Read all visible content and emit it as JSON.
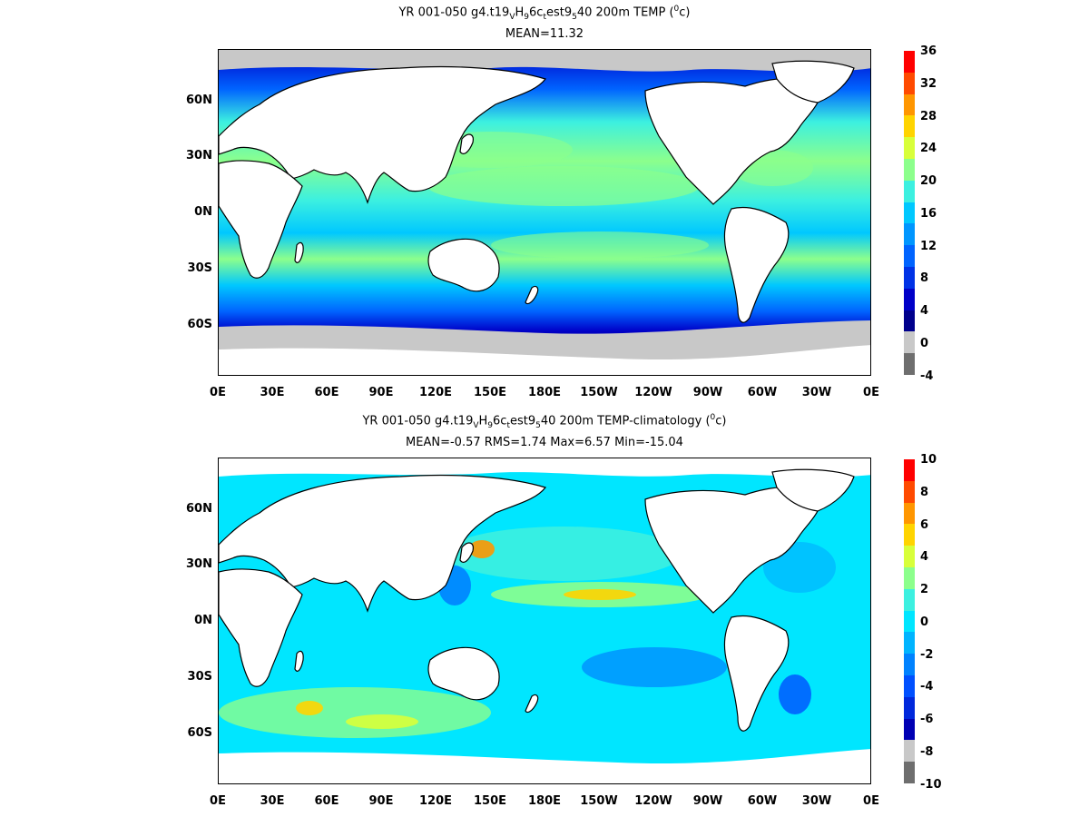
{
  "panels": [
    {
      "title_parts": {
        "pre": "YR 001-050 g4.t19",
        "s1": "V",
        "m1": "H",
        "s2": "9",
        "m2": "6c",
        "s3": "t",
        "m3": "est9",
        "s4": "5",
        "m4": "40 200m TEMP (",
        "sup": "0",
        "post": "c)"
      },
      "stats": "MEAN=11.32",
      "colorbar": {
        "labels": [
          "36",
          "32",
          "28",
          "24",
          "20",
          "16",
          "12",
          "8",
          "4",
          "0",
          "-4"
        ],
        "colors": [
          "#ff0000",
          "#ff4a00",
          "#ff9600",
          "#ffd400",
          "#d8ff3a",
          "#8cff8c",
          "#3cf0e0",
          "#00c8ff",
          "#0096ff",
          "#0064ff",
          "#0032e6",
          "#0000c8",
          "#00008c",
          "#c8c8c8",
          "#6e6e6e"
        ]
      }
    },
    {
      "title_parts": {
        "pre": "YR 001-050 g4.t19",
        "s1": "V",
        "m1": "H",
        "s2": "9",
        "m2": "6c",
        "s3": "t",
        "m3": "est9",
        "s4": "5",
        "m4": "40 200m TEMP-climatology (",
        "sup": "0",
        "post": "c)"
      },
      "stats": "MEAN=-0.57   RMS=1.74   Max=6.57   Min=-15.04",
      "colorbar": {
        "labels": [
          "10",
          "8",
          "6",
          "4",
          "2",
          "0",
          "-2",
          "-4",
          "-6",
          "-8",
          "-10"
        ],
        "colors": [
          "#ff0000",
          "#ff4a00",
          "#ff9600",
          "#ffd400",
          "#d8ff3a",
          "#8cff8c",
          "#3cf0e0",
          "#00e6ff",
          "#00b4ff",
          "#0082ff",
          "#0050ff",
          "#0028dc",
          "#0000b4",
          "#c8c8c8",
          "#6e6e6e"
        ]
      }
    }
  ],
  "axes": {
    "lat_labels": [
      "60N",
      "30N",
      "0N",
      "30S",
      "60S"
    ],
    "lon_labels": [
      "0E",
      "30E",
      "60E",
      "90E",
      "120E",
      "150E",
      "180E",
      "150W",
      "120W",
      "90W",
      "60W",
      "30W",
      "0E"
    ]
  },
  "colors": {
    "land": "#ffffff",
    "missing": "#c8c8c8",
    "coast": "#000000"
  }
}
